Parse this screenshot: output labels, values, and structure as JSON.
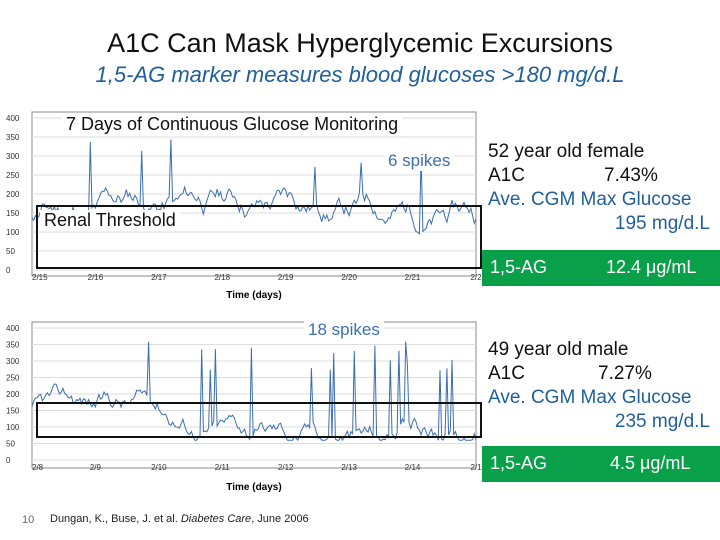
{
  "header": {
    "title": "A1C Can Mask Hyperglycemic Excursions",
    "subtitle": "1,5-AG marker measures blood glucoses >180 mg/d.L"
  },
  "chart1": {
    "caption": "7 Days of Continuous Glucose Monitoring",
    "spikes_label": "6 spikes",
    "renal_label": "Renal Threshold",
    "y_ticks": [
      "400",
      "350",
      "300",
      "250",
      "200",
      "150",
      "100",
      "50",
      "0"
    ],
    "x_ticks": [
      "2/15",
      "2/16",
      "2/17",
      "2/18",
      "2/19",
      "2/20",
      "2/21",
      "2/2"
    ],
    "x_label": "Time (days)"
  },
  "chart2": {
    "spikes_label": "18 spikes",
    "y_ticks": [
      "400",
      "350",
      "300",
      "250",
      "200",
      "150",
      "100",
      "50",
      "0"
    ],
    "x_ticks": [
      "2/8",
      "2/9",
      "2/10",
      "2/11",
      "2/12",
      "2/13",
      "2/14",
      "2/1"
    ],
    "x_label": "Time (days)"
  },
  "patient1": {
    "desc": "52 year old female",
    "a1c_label": "A1C",
    "a1c_value": "7.43%",
    "cgm_label": "Ave. CGM Max Glucose",
    "cgm_value": "195 mg/d.L",
    "ag_label": "1,5-AG",
    "ag_value": "12.4 μg/mL"
  },
  "patient2": {
    "desc": "49 year old male",
    "a1c_label": "A1C",
    "a1c_value": "7.27%",
    "cgm_label": "Ave. CGM Max Glucose",
    "cgm_value": "235 mg/d.L",
    "ag_label": "1,5-AG",
    "ag_value": "4.5 μg/mL"
  },
  "footer": {
    "slide_number": "10",
    "citation_authors": "Dungan, K., Buse, J. et al. ",
    "citation_journal": "Diabetes Care",
    "citation_date": ", June 2006"
  },
  "colors": {
    "accent_green": "#0aa04a",
    "trace_blue": "#3b6fb0",
    "subtitle_blue": "#1f5f9b"
  }
}
